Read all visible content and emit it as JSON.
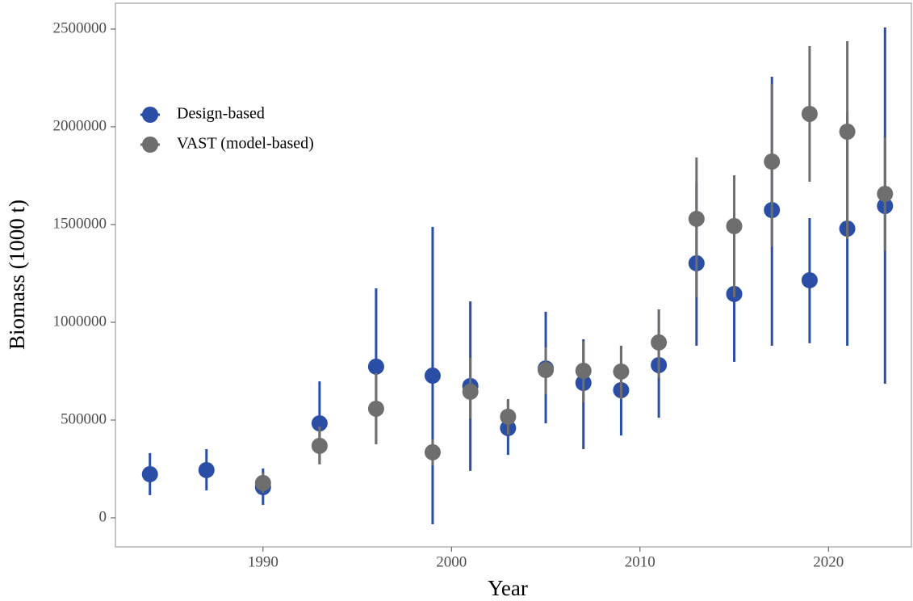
{
  "chart_data": {
    "type": "errorbar-scatter",
    "x_label": "Year",
    "y_label": "Biomass (1000 t)",
    "xlim": [
      1982.17,
      2024.4
    ],
    "ylim": [
      -148760,
      2632000
    ],
    "xticks": [
      1990,
      2000,
      2010,
      2020
    ],
    "yticks": [
      0,
      500000,
      1000000,
      1500000,
      2000000,
      2500000
    ],
    "grid": false,
    "legend_position": "top-left",
    "series": [
      {
        "name": "Design-based",
        "color": "#2a4ea6",
        "x": [
          1984,
          1987,
          1990,
          1993,
          1996,
          1999,
          2001,
          2003,
          2005,
          2007,
          2009,
          2011,
          2013,
          2015,
          2017,
          2019,
          2021,
          2023
        ],
        "values": [
          223000,
          244000,
          157000,
          483000,
          773000,
          727000,
          674000,
          459000,
          764000,
          690000,
          653000,
          781000,
          1302000,
          1145000,
          1574000,
          1215000,
          1479000,
          1595000
        ],
        "lower": [
          116000,
          140000,
          66000,
          277000,
          376000,
          -33000,
          240000,
          322000,
          483000,
          351000,
          421000,
          512000,
          880000,
          798000,
          880000,
          893000,
          880000,
          686000
        ],
        "upper": [
          331000,
          351000,
          252000,
          698000,
          1174000,
          1488000,
          1107000,
          607000,
          1054000,
          913000,
          880000,
          1066000,
          1715000,
          1566000,
          2256000,
          1533000,
          2074000,
          2508000
        ]
      },
      {
        "name": "VAST (model-based)",
        "color": "#6e6e6e",
        "x": [
          1990,
          1993,
          1996,
          1999,
          2001,
          2003,
          2005,
          2007,
          2009,
          2011,
          2013,
          2015,
          2017,
          2019,
          2021,
          2023
        ],
        "values": [
          178000,
          368000,
          558000,
          335000,
          645000,
          517000,
          756000,
          752000,
          748000,
          897000,
          1529000,
          1492000,
          1822000,
          2066000,
          1975000,
          1657000
        ],
        "lower": [
          128000,
          273000,
          376000,
          269000,
          508000,
          426000,
          632000,
          591000,
          607000,
          715000,
          1128000,
          1128000,
          1388000,
          1719000,
          1426000,
          1364000
        ],
        "upper": [
          231000,
          467000,
          740000,
          401000,
          818000,
          607000,
          872000,
          901000,
          880000,
          1066000,
          1843000,
          1752000,
          2219000,
          2413000,
          2438000,
          1946000
        ]
      }
    ]
  }
}
